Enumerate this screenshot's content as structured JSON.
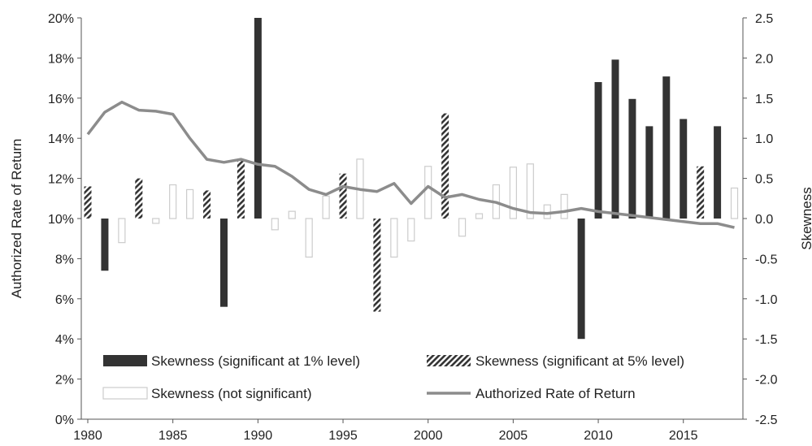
{
  "chart_data": {
    "type": "bar",
    "x": [
      1980,
      1981,
      1982,
      1983,
      1984,
      1985,
      1986,
      1987,
      1988,
      1989,
      1990,
      1991,
      1992,
      1993,
      1994,
      1995,
      1996,
      1997,
      1998,
      1999,
      2000,
      2001,
      2002,
      2003,
      2004,
      2005,
      2006,
      2007,
      2008,
      2009,
      2010,
      2011,
      2012,
      2013,
      2014,
      2015,
      2016,
      2017,
      2018
    ],
    "skewness": [
      0.4,
      -0.65,
      -0.3,
      0.5,
      -0.06,
      0.42,
      0.36,
      0.35,
      -1.1,
      0.73,
      2.5,
      -0.14,
      0.09,
      -0.48,
      0.28,
      0.56,
      0.74,
      -1.16,
      -0.48,
      -0.28,
      0.65,
      1.31,
      -0.22,
      0.06,
      0.42,
      0.64,
      0.68,
      0.17,
      0.3,
      -1.5,
      1.7,
      1.98,
      1.49,
      1.15,
      1.77,
      1.24,
      0.65,
      1.15,
      0.38
    ],
    "significance": [
      "5%",
      "1%",
      "none",
      "5%",
      "none",
      "none",
      "none",
      "5%",
      "1%",
      "5%",
      "1%",
      "none",
      "none",
      "none",
      "none",
      "5%",
      "none",
      "5%",
      "none",
      "none",
      "none",
      "5%",
      "none",
      "none",
      "none",
      "none",
      "none",
      "none",
      "none",
      "1%",
      "1%",
      "1%",
      "1%",
      "1%",
      "1%",
      "1%",
      "5%",
      "1%",
      "none"
    ],
    "series": [
      {
        "name": "Skewness (significant at 1% level)",
        "color": "#333333",
        "style": "solid"
      },
      {
        "name": "Skewness (significant at 5% level)",
        "color": "#333333",
        "style": "hatched"
      },
      {
        "name": "Skewness (not significant)",
        "color": "#cccccc",
        "style": "outline"
      },
      {
        "name": "Authorized Rate of Return",
        "color": "#8c8c8c",
        "style": "line",
        "values": [
          14.2,
          15.3,
          15.8,
          15.4,
          15.35,
          15.2,
          14.0,
          12.95,
          12.8,
          12.95,
          12.7,
          12.6,
          12.1,
          11.45,
          11.2,
          11.6,
          11.45,
          11.35,
          11.75,
          10.75,
          11.6,
          11.05,
          11.2,
          10.95,
          10.8,
          10.5,
          10.3,
          10.25,
          10.35,
          10.5,
          10.35,
          10.25,
          10.15,
          10.05,
          9.95,
          9.85,
          9.75,
          9.75,
          9.55
        ]
      }
    ],
    "ylabel": "Authorized  Rate of Return",
    "y2label": "Skewness",
    "ylim": [
      0,
      20
    ],
    "y2lim": [
      -2.5,
      2.5
    ],
    "xlim": [
      1980,
      2018.5
    ],
    "xticks": [
      "1980",
      "1985",
      "1990",
      "1995",
      "2000",
      "2005",
      "2010",
      "2015"
    ],
    "yticks": [
      "0%",
      "2%",
      "4%",
      "6%",
      "8%",
      "10%",
      "12%",
      "14%",
      "16%",
      "18%",
      "20%"
    ],
    "y2ticks": [
      "-2.5",
      "-2.0",
      "-1.5",
      "-1.0",
      "-0.5",
      "0.0",
      "0.5",
      "1.0",
      "1.5",
      "2.0",
      "2.5"
    ],
    "grid": false,
    "legend": "bottom, inside plot, two columns"
  }
}
